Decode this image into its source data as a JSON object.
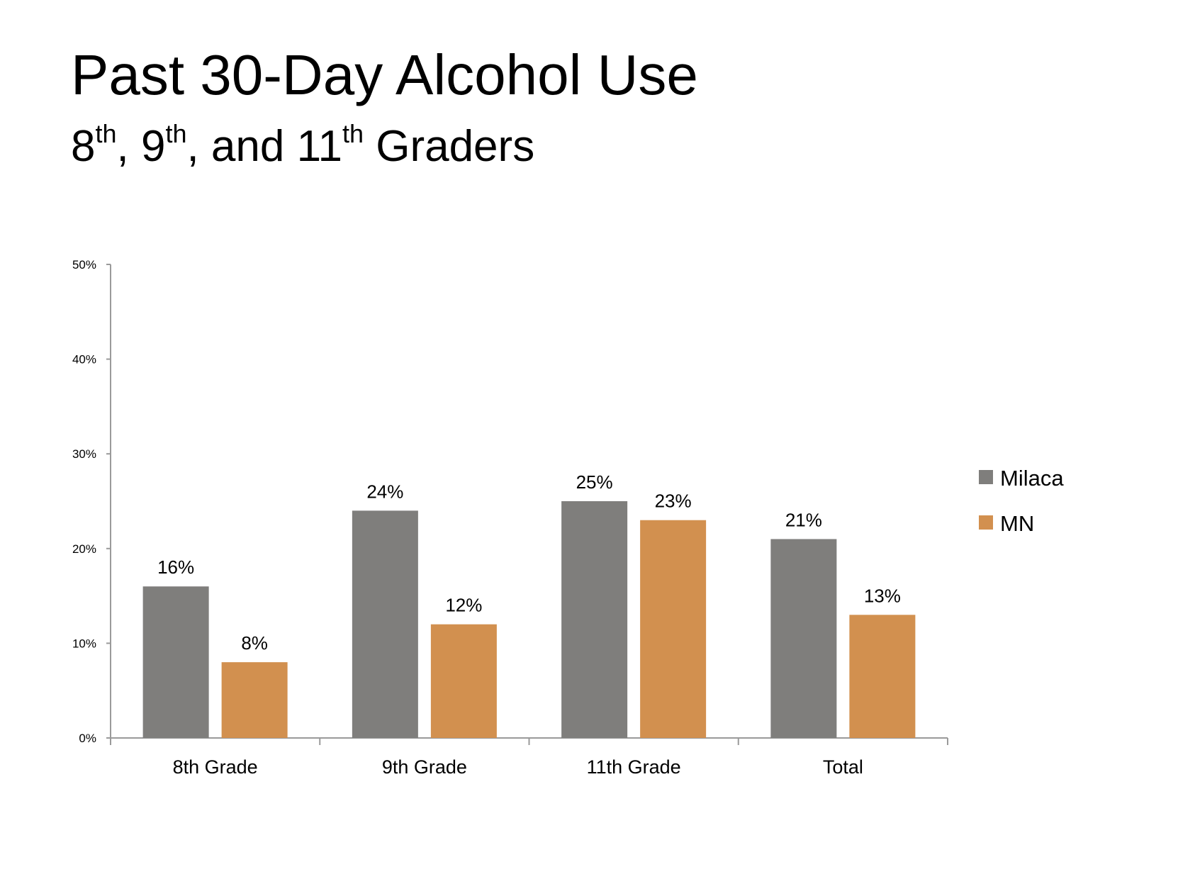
{
  "slide": {
    "title": "Past 30-Day Alcohol Use",
    "subtitle_parts": [
      {
        "text": "8",
        "sup": "th"
      },
      {
        "text": ", 9",
        "sup": "th"
      },
      {
        "text": ", and 11",
        "sup": "th"
      },
      {
        "text": " Graders",
        "sup": ""
      }
    ]
  },
  "chart_data": {
    "type": "bar",
    "categories": [
      "8th Grade",
      "9th Grade",
      "11th Grade",
      "Total"
    ],
    "series": [
      {
        "name": "Milaca",
        "values": [
          16,
          24,
          25,
          21
        ],
        "labels": [
          "16%",
          "24%",
          "25%",
          "21%"
        ],
        "color": "#7f7e7c"
      },
      {
        "name": "MN",
        "values": [
          8,
          12,
          23,
          13
        ],
        "labels": [
          "8%",
          "12%",
          "23%",
          "13%"
        ],
        "color": "#d2904f"
      }
    ],
    "ylim": [
      0,
      50
    ],
    "yticks": [
      "0%",
      "10%",
      "20%",
      "30%",
      "40%",
      "50%"
    ],
    "ytick_values": [
      0,
      10,
      20,
      30,
      40,
      50
    ],
    "grid": false,
    "legend_position": "right"
  },
  "colors": {
    "axis": "#9a9a9a",
    "milaca": "#7f7e7c",
    "mn": "#d2904f"
  }
}
